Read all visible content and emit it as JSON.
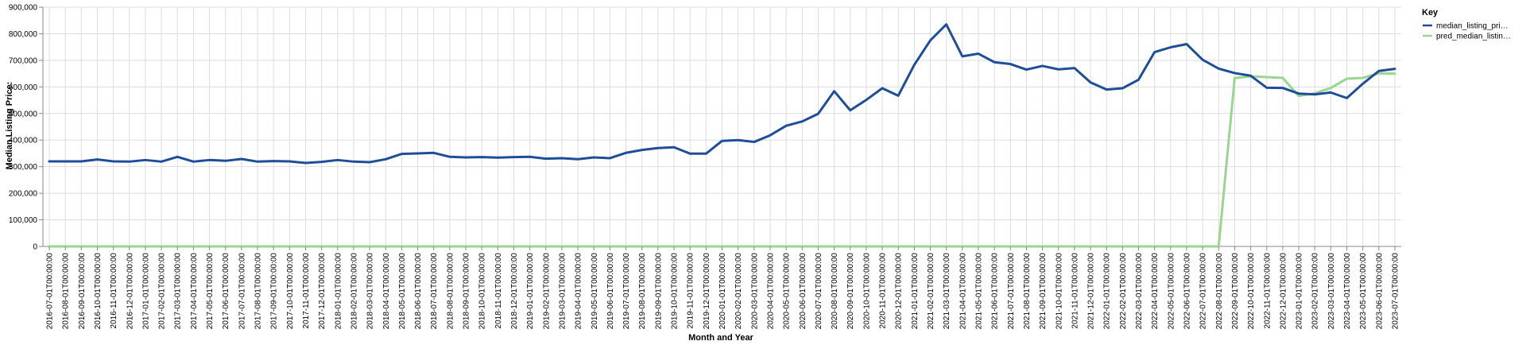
{
  "chart_data": {
    "type": "line",
    "xlabel": "Month and Year",
    "ylabel": "Median Listing Price:",
    "ylim": [
      0,
      900000
    ],
    "yticks": [
      "0",
      "100,000",
      "200,000",
      "300,000",
      "400,000",
      "500,000",
      "600,000",
      "700,000",
      "800,000",
      "900,000"
    ],
    "grid": true,
    "legend": {
      "title": "Key",
      "placement": "top-right",
      "entries": [
        "median_listing_pri…",
        "pred_median_listin…"
      ]
    },
    "x": [
      "2016-07-01T00:00:00",
      "2016-08-01T00:00:00",
      "2016-09-01T00:00:00",
      "2016-10-01T00:00:00",
      "2016-11-01T00:00:00",
      "2016-12-01T00:00:00",
      "2017-01-01T00:00:00",
      "2017-02-01T00:00:00",
      "2017-03-01T00:00:00",
      "2017-04-01T00:00:00",
      "2017-05-01T00:00:00",
      "2017-06-01T00:00:00",
      "2017-07-01T00:00:00",
      "2017-08-01T00:00:00",
      "2017-09-01T00:00:00",
      "2017-10-01T00:00:00",
      "2017-11-01T00:00:00",
      "2017-12-01T00:00:00",
      "2018-01-01T00:00:00",
      "2018-02-01T00:00:00",
      "2018-03-01T00:00:00",
      "2018-04-01T00:00:00",
      "2018-05-01T00:00:00",
      "2018-06-01T00:00:00",
      "2018-07-01T00:00:00",
      "2018-08-01T00:00:00",
      "2018-09-01T00:00:00",
      "2018-10-01T00:00:00",
      "2018-11-01T00:00:00",
      "2018-12-01T00:00:00",
      "2019-01-01T00:00:00",
      "2019-02-01T00:00:00",
      "2019-03-01T00:00:00",
      "2019-04-01T00:00:00",
      "2019-05-01T00:00:00",
      "2019-06-01T00:00:00",
      "2019-07-01T00:00:00",
      "2019-08-01T00:00:00",
      "2019-09-01T00:00:00",
      "2019-10-01T00:00:00",
      "2019-11-01T00:00:00",
      "2019-12-01T00:00:00",
      "2020-01-01T00:00:00",
      "2020-02-01T00:00:00",
      "2020-03-01T00:00:00",
      "2020-04-01T00:00:00",
      "2020-05-01T00:00:00",
      "2020-06-01T00:00:00",
      "2020-07-01T00:00:00",
      "2020-08-01T00:00:00",
      "2020-09-01T00:00:00",
      "2020-10-01T00:00:00",
      "2020-11-01T00:00:00",
      "2020-12-01T00:00:00",
      "2021-01-01T00:00:00",
      "2021-02-01T00:00:00",
      "2021-03-01T00:00:00",
      "2021-04-01T00:00:00",
      "2021-05-01T00:00:00",
      "2021-06-01T00:00:00",
      "2021-07-01T00:00:00",
      "2021-08-01T00:00:00",
      "2021-09-01T00:00:00",
      "2021-10-01T00:00:00",
      "2021-11-01T00:00:00",
      "2021-12-01T00:00:00",
      "2022-01-01T00:00:00",
      "2022-02-01T00:00:00",
      "2022-03-01T00:00:00",
      "2022-04-01T00:00:00",
      "2022-05-01T00:00:00",
      "2022-06-01T00:00:00",
      "2022-07-01T00:00:00",
      "2022-08-01T00:00:00",
      "2022-09-01T00:00:00",
      "2022-10-01T00:00:00",
      "2022-11-01T00:00:00",
      "2022-12-01T00:00:00",
      "2023-01-01T00:00:00",
      "2023-02-01T00:00:00",
      "2023-03-01T00:00:00",
      "2023-04-01T00:00:00",
      "2023-05-01T00:00:00",
      "2023-06-01T00:00:00",
      "2023-07-01T00:00:00"
    ],
    "series": [
      {
        "name": "median_listing_pri…",
        "color": "#1f4e99",
        "values": [
          320000,
          320000,
          320000,
          327000,
          320000,
          319000,
          325000,
          319000,
          337000,
          319000,
          325000,
          322000,
          329000,
          319000,
          321000,
          320000,
          314000,
          318000,
          325000,
          319000,
          317000,
          328000,
          348000,
          350000,
          352000,
          337000,
          335000,
          336000,
          334000,
          336000,
          337000,
          330000,
          332000,
          328000,
          335000,
          332000,
          352000,
          363000,
          370000,
          373000,
          349000,
          349000,
          397000,
          400000,
          393000,
          418000,
          454000,
          470000,
          499000,
          584000,
          512000,
          551000,
          595000,
          567000,
          683000,
          775000,
          835000,
          715000,
          725000,
          693000,
          686000,
          665000,
          679000,
          666000,
          671000,
          617000,
          590000,
          595000,
          627000,
          731000,
          749000,
          761000,
          702000,
          669000,
          652000,
          642000,
          597000,
          596000,
          575000,
          572000,
          579000,
          558000,
          612000,
          660000,
          668000
        ]
      },
      {
        "name": "pred_median_listin…",
        "color": "#99d68f",
        "values": [
          0,
          0,
          0,
          0,
          0,
          0,
          0,
          0,
          0,
          0,
          0,
          0,
          0,
          0,
          0,
          0,
          0,
          0,
          0,
          0,
          0,
          0,
          0,
          0,
          0,
          0,
          0,
          0,
          0,
          0,
          0,
          0,
          0,
          0,
          0,
          0,
          0,
          0,
          0,
          0,
          0,
          0,
          0,
          0,
          0,
          0,
          0,
          0,
          0,
          0,
          0,
          0,
          0,
          0,
          0,
          0,
          0,
          0,
          0,
          0,
          0,
          0,
          0,
          0,
          0,
          0,
          0,
          0,
          0,
          0,
          0,
          0,
          0,
          0,
          633000,
          640000,
          637000,
          634000,
          566000,
          576000,
          596000,
          631000,
          634000,
          651000,
          650000
        ]
      }
    ]
  }
}
